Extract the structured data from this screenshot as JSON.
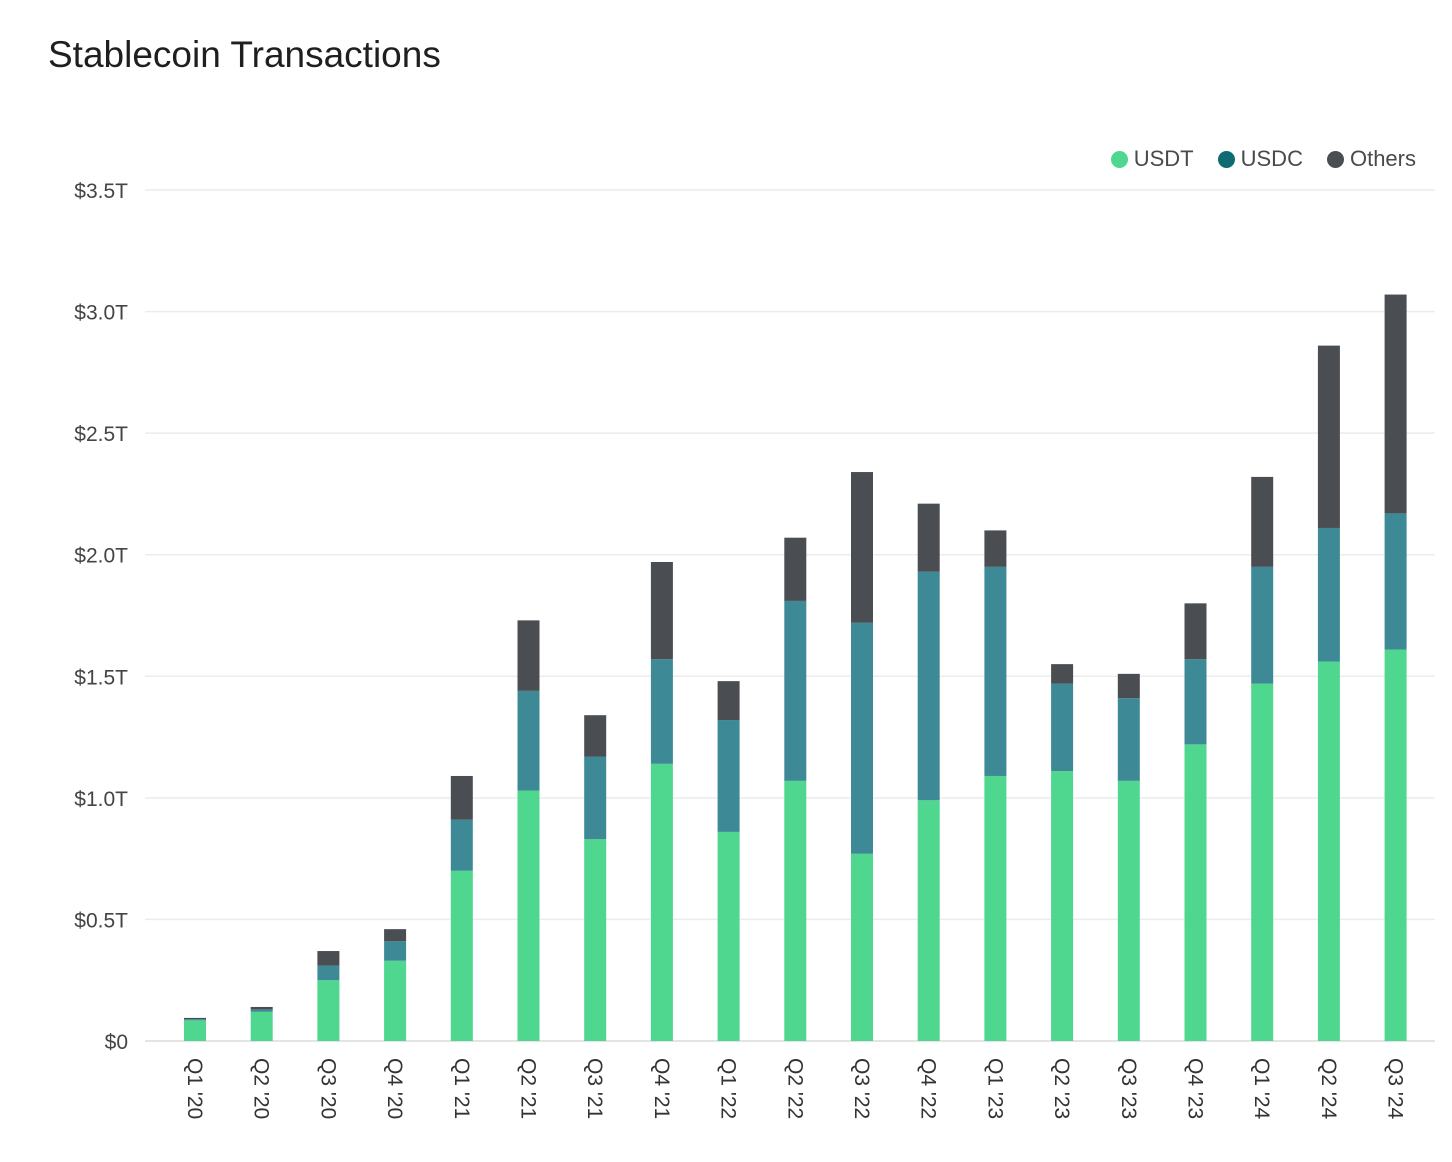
{
  "chart_data": {
    "type": "bar",
    "stacked": true,
    "title": "Stablecoin Transactions",
    "xlabel": "",
    "ylabel": "",
    "ylim": [
      0,
      3.5
    ],
    "unit": "trillion USD",
    "yticks": [
      0,
      0.5,
      1.0,
      1.5,
      2.0,
      2.5,
      3.0,
      3.5
    ],
    "ytick_labels": [
      "$0",
      "$0.5T",
      "$1.0T",
      "$1.5T",
      "$2.0T",
      "$2.5T",
      "$3.0T",
      "$3.5T"
    ],
    "grid": true,
    "legend_position": "top-right",
    "categories": [
      "Q1 '20",
      "Q2 '20",
      "Q3 '20",
      "Q4 '20",
      "Q1 '21",
      "Q2 '21",
      "Q3 '21",
      "Q4 '21",
      "Q1 '22",
      "Q2 '22",
      "Q3 '22",
      "Q4 '22",
      "Q1 '23",
      "Q2 '23",
      "Q3 '23",
      "Q4 '23",
      "Q1 '24",
      "Q2 '24",
      "Q3 '24"
    ],
    "series": [
      {
        "name": "USDT",
        "color": "#4fd68f",
        "values": [
          0.085,
          0.12,
          0.25,
          0.33,
          0.7,
          1.03,
          0.83,
          1.14,
          0.86,
          1.07,
          0.77,
          0.99,
          1.09,
          1.11,
          1.07,
          1.22,
          1.47,
          1.56,
          1.61
        ]
      },
      {
        "name": "USDC",
        "color": "#3d8a96",
        "legend_color": "#0f6b73",
        "values": [
          0.005,
          0.01,
          0.06,
          0.08,
          0.21,
          0.41,
          0.34,
          0.43,
          0.46,
          0.74,
          0.95,
          0.94,
          0.86,
          0.36,
          0.34,
          0.35,
          0.48,
          0.55,
          0.56
        ]
      },
      {
        "name": "Others",
        "color": "#4a4d52",
        "values": [
          0.005,
          0.01,
          0.06,
          0.05,
          0.18,
          0.29,
          0.17,
          0.4,
          0.16,
          0.26,
          0.62,
          0.28,
          0.15,
          0.08,
          0.1,
          0.23,
          0.37,
          0.75,
          0.9
        ]
      }
    ]
  }
}
